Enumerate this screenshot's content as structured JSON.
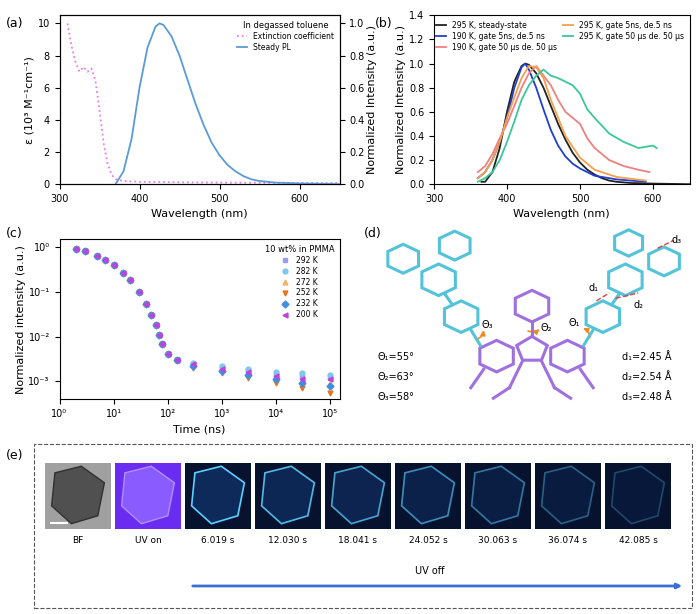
{
  "chart_data": [
    {
      "panel_label": "(a)",
      "type": "line",
      "x_label": "Wavelength (nm)",
      "y_label": "ε (10³ M⁻¹cm⁻¹)",
      "y2_label": "Normalized Intensity (a.u.)",
      "xlim": [
        300,
        650
      ],
      "xticks": [
        300,
        400,
        500,
        600
      ],
      "ylim": [
        0,
        10.5
      ],
      "yticks": [
        0,
        2,
        4,
        6,
        8,
        10
      ],
      "y2lim": [
        0,
        1.05
      ],
      "y2ticks": [
        0.0,
        0.2,
        0.4,
        0.6,
        0.8,
        1.0
      ],
      "legend": "upper right",
      "legend_title": "In degassed toluene",
      "series": [
        {
          "name": "Extinction coefficient",
          "color": "#e87de8",
          "line_style": "dotted",
          "x": [
            310,
            315,
            320,
            325,
            330,
            335,
            340,
            345,
            350,
            355,
            360,
            365,
            370,
            380,
            400,
            450,
            500,
            550,
            600,
            650
          ],
          "values": [
            10.0,
            8.6,
            7.6,
            7.0,
            7.3,
            7.0,
            7.2,
            6.4,
            4.6,
            2.6,
            1.3,
            0.6,
            0.32,
            0.2,
            0.15,
            0.12,
            0.1,
            0.09,
            0.08,
            0.08
          ]
        },
        {
          "name": "Steady PL",
          "color": "#5b9bd5",
          "line_style": "solid",
          "axis": "y2",
          "x": [
            370,
            380,
            390,
            400,
            410,
            420,
            425,
            430,
            440,
            450,
            460,
            470,
            480,
            490,
            500,
            510,
            520,
            530,
            540,
            550,
            570,
            600,
            650
          ],
          "values": [
            0.0,
            0.08,
            0.28,
            0.6,
            0.85,
            0.98,
            1.0,
            0.99,
            0.92,
            0.8,
            0.65,
            0.5,
            0.37,
            0.26,
            0.18,
            0.12,
            0.08,
            0.05,
            0.03,
            0.02,
            0.01,
            0.005,
            0.0
          ]
        }
      ]
    },
    {
      "panel_label": "(b)",
      "type": "line",
      "x_label": "Wavelength (nm)",
      "y_label": "Normalized Intensity (a.u.)",
      "xlim": [
        300,
        650
      ],
      "xticks": [
        300,
        400,
        500,
        600
      ],
      "ylim": [
        0,
        1.4
      ],
      "yticks": [
        0.0,
        0.2,
        0.4,
        0.6,
        0.8,
        1.0,
        1.2,
        1.4
      ],
      "legend": "upper right",
      "series": [
        {
          "name": "295 K, steady-state",
          "color": "#222222",
          "line_style": "solid",
          "x": [
            365,
            370,
            380,
            390,
            400,
            410,
            420,
            425,
            430,
            440,
            450,
            460,
            470,
            480,
            490,
            500,
            510,
            520,
            530,
            540,
            550,
            570,
            600,
            650
          ],
          "values": [
            0.02,
            0.02,
            0.1,
            0.3,
            0.6,
            0.85,
            0.98,
            1.0,
            0.99,
            0.92,
            0.8,
            0.65,
            0.5,
            0.37,
            0.26,
            0.18,
            0.12,
            0.08,
            0.05,
            0.03,
            0.02,
            0.01,
            0.005,
            0.0
          ]
        },
        {
          "name": "190 K, gate 5ns, de.5 ns",
          "color": "#1f3fd0",
          "line_style": "solid",
          "x": [
            360,
            370,
            380,
            390,
            400,
            410,
            420,
            425,
            430,
            440,
            450,
            460,
            470,
            480,
            490,
            500,
            520,
            550,
            590
          ],
          "values": [
            0.05,
            0.1,
            0.2,
            0.35,
            0.55,
            0.8,
            0.97,
            1.0,
            0.95,
            0.8,
            0.62,
            0.45,
            0.32,
            0.23,
            0.17,
            0.13,
            0.07,
            0.04,
            0.02
          ]
        },
        {
          "name": "190 K, gate 50 μs de. 50 μs",
          "color": "#f08080",
          "line_style": "solid",
          "x": [
            360,
            370,
            380,
            390,
            400,
            410,
            420,
            430,
            440,
            450,
            460,
            470,
            480,
            490,
            500,
            510,
            520,
            540,
            560,
            580,
            595
          ],
          "values": [
            0.1,
            0.15,
            0.25,
            0.38,
            0.5,
            0.65,
            0.8,
            0.92,
            0.98,
            0.9,
            0.82,
            0.7,
            0.6,
            0.55,
            0.5,
            0.38,
            0.3,
            0.2,
            0.15,
            0.12,
            0.1
          ]
        },
        {
          "name": "295 K, gate 5ns, de.5 ns",
          "color": "#f5a04a",
          "line_style": "solid",
          "x": [
            360,
            370,
            380,
            390,
            400,
            410,
            420,
            430,
            440,
            450,
            460,
            470,
            480,
            500,
            520,
            550,
            590
          ],
          "values": [
            0.05,
            0.1,
            0.2,
            0.35,
            0.55,
            0.72,
            0.88,
            0.98,
            0.97,
            0.88,
            0.7,
            0.55,
            0.4,
            0.22,
            0.12,
            0.06,
            0.03
          ]
        },
        {
          "name": "295 K, gate 50 μs de. 50 μs",
          "color": "#3cc79a",
          "line_style": "solid",
          "x": [
            360,
            370,
            380,
            390,
            400,
            410,
            420,
            430,
            440,
            450,
            460,
            470,
            480,
            490,
            500,
            510,
            520,
            540,
            560,
            580,
            600,
            605
          ],
          "values": [
            0.02,
            0.05,
            0.1,
            0.2,
            0.35,
            0.52,
            0.7,
            0.82,
            0.9,
            0.95,
            0.9,
            0.88,
            0.85,
            0.82,
            0.75,
            0.62,
            0.55,
            0.42,
            0.35,
            0.3,
            0.32,
            0.3
          ]
        }
      ]
    },
    {
      "panel_label": "(c)",
      "type": "scatter",
      "log": true,
      "x_label": "Time (ns)",
      "y_label": "Normalized intensity (a.u.)",
      "xlim": [
        1,
        150000
      ],
      "xticks": [
        {
          "value": 1,
          "label": "10⁰"
        },
        {
          "value": 10,
          "label": "10¹"
        },
        {
          "value": 100,
          "label": "10²"
        },
        {
          "value": 1000,
          "label": "10³"
        },
        {
          "value": 10000,
          "label": "10⁴"
        },
        {
          "value": 100000,
          "label": "10⁵"
        }
      ],
      "ylim": [
        0.0004,
        1.5
      ],
      "yticks": [
        {
          "value": 0.001,
          "label": "10⁻³"
        },
        {
          "value": 0.01,
          "label": "10⁻²"
        },
        {
          "value": 0.1,
          "label": "10⁻¹"
        },
        {
          "value": 1,
          "label": "10⁰"
        }
      ],
      "legend": "upper right",
      "legend_title": "10 wt% in PMMA",
      "x": [
        2,
        3,
        5,
        7,
        10,
        15,
        20,
        30,
        40,
        50,
        60,
        70,
        80,
        100,
        150,
        300,
        1000,
        3000,
        10000,
        30000,
        100000
      ],
      "series": [
        {
          "name": "292 K",
          "color": "#9b9bef",
          "marker": "square",
          "values": [
            0.9,
            0.82,
            0.65,
            0.52,
            0.4,
            0.27,
            0.19,
            0.1,
            0.055,
            0.03,
            0.018,
            0.011,
            0.007,
            0.004,
            0.003,
            0.0025,
            0.002,
            0.0017,
            0.0014,
            0.0013,
            0.0012
          ]
        },
        {
          "name": "282 K",
          "color": "#7fc8e8",
          "marker": "circle",
          "values": [
            0.9,
            0.82,
            0.65,
            0.52,
            0.4,
            0.27,
            0.19,
            0.1,
            0.055,
            0.03,
            0.018,
            0.011,
            0.007,
            0.004,
            0.003,
            0.0026,
            0.0022,
            0.0019,
            0.0016,
            0.0015,
            0.0014
          ]
        },
        {
          "name": "272 K",
          "color": "#f2b36b",
          "marker": "triangle_up",
          "values": [
            0.9,
            0.82,
            0.65,
            0.52,
            0.4,
            0.27,
            0.19,
            0.1,
            0.055,
            0.03,
            0.018,
            0.011,
            0.007,
            0.004,
            0.003,
            0.0023,
            0.0018,
            0.0015,
            0.0012,
            0.001,
            0.0009
          ]
        },
        {
          "name": "252 K",
          "color": "#e8731f",
          "marker": "triangle_down",
          "values": [
            0.9,
            0.82,
            0.65,
            0.52,
            0.4,
            0.27,
            0.19,
            0.1,
            0.055,
            0.03,
            0.018,
            0.011,
            0.007,
            0.004,
            0.003,
            0.002,
            0.0015,
            0.0012,
            0.0009,
            0.0007,
            0.00055
          ]
        },
        {
          "name": "232 K",
          "color": "#3f8fe0",
          "marker": "diamond",
          "values": [
            0.9,
            0.82,
            0.65,
            0.52,
            0.4,
            0.27,
            0.19,
            0.1,
            0.055,
            0.03,
            0.018,
            0.011,
            0.007,
            0.004,
            0.003,
            0.0022,
            0.0017,
            0.0014,
            0.0011,
            0.0009,
            0.0008
          ]
        },
        {
          "name": "200 K",
          "color": "#c040e0",
          "marker": "triangle_left",
          "values": [
            0.9,
            0.82,
            0.65,
            0.52,
            0.4,
            0.27,
            0.19,
            0.1,
            0.055,
            0.03,
            0.018,
            0.011,
            0.007,
            0.004,
            0.003,
            0.0024,
            0.0019,
            0.0016,
            0.0013,
            0.0011,
            0.0011
          ]
        }
      ]
    }
  ],
  "structure": {
    "panel_label": "(d)",
    "bond_labels": [
      "Θ₁",
      "Θ₂",
      "Θ₃",
      "d₁",
      "d₂",
      "d₃"
    ],
    "measurements": [
      "Θ₁=55°",
      "Θ₂=63°",
      "Θ₃=58°",
      "d₁=2.45 Å",
      "d₂=2.54 Å",
      "d₃=2.48 Å"
    ]
  },
  "image_strip": {
    "panel_label": "(e)",
    "frames": [
      "BF",
      "UV on",
      "6.019 s",
      "12.030 s",
      "18.041 s",
      "24.052 s",
      "30.063 s",
      "36.074 s",
      "42.085 s"
    ],
    "arrow_label": "UV off"
  }
}
